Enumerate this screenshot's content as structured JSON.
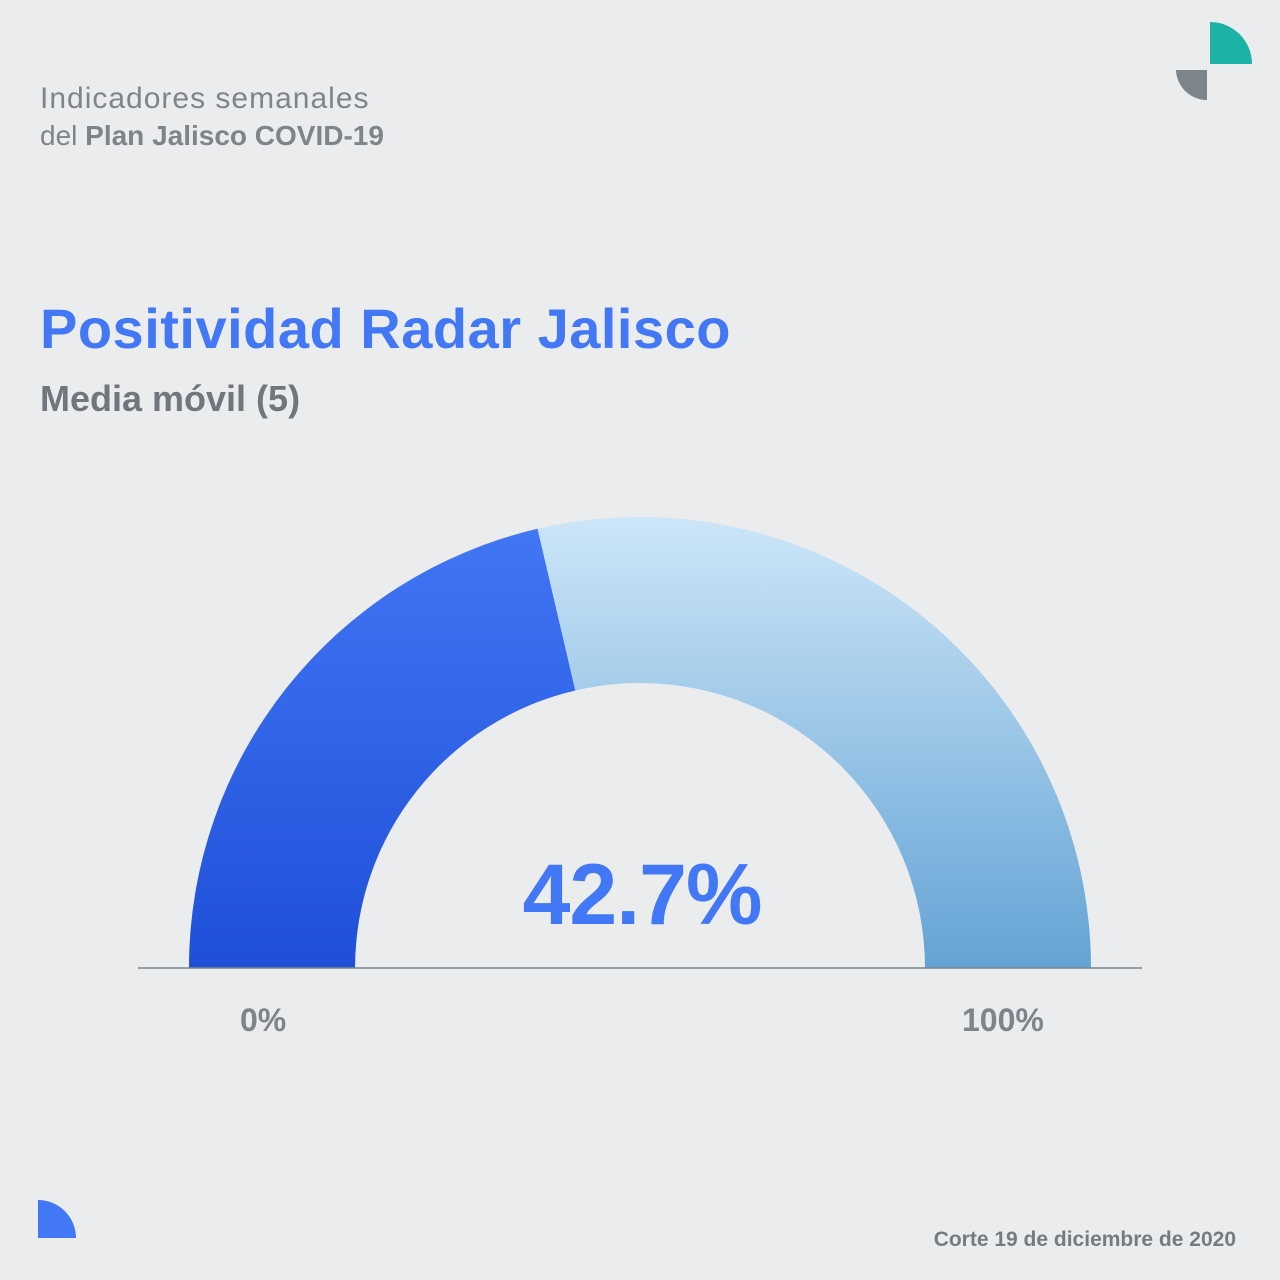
{
  "header": {
    "line1": "Indicadores semanales",
    "line2_prefix": "del ",
    "line2_bold": "Plan Jalisco COVID-19"
  },
  "logos": {
    "top": "quarter-circles-logo-icon",
    "bottom": "quarter-circle-icon"
  },
  "colors": {
    "accent": "#4277f5",
    "gauge_fill_top": "#4277f5",
    "gauge_fill_bottom": "#1f4fd9",
    "gauge_track_top": "#cde6f8",
    "gauge_track_bottom": "#64a3d5",
    "teal": "#1ab3a6",
    "gray": "#7d858b"
  },
  "chart_data": {
    "type": "gauge",
    "title": "Positividad Radar Jalisco",
    "subtitle": "Media móvil (5)",
    "value": 42.7,
    "value_label": "42.7%",
    "min": 0,
    "max": 100,
    "min_label": "0%",
    "max_label": "100%"
  },
  "footer": {
    "date_label": "Corte 19 de diciembre de 2020"
  }
}
